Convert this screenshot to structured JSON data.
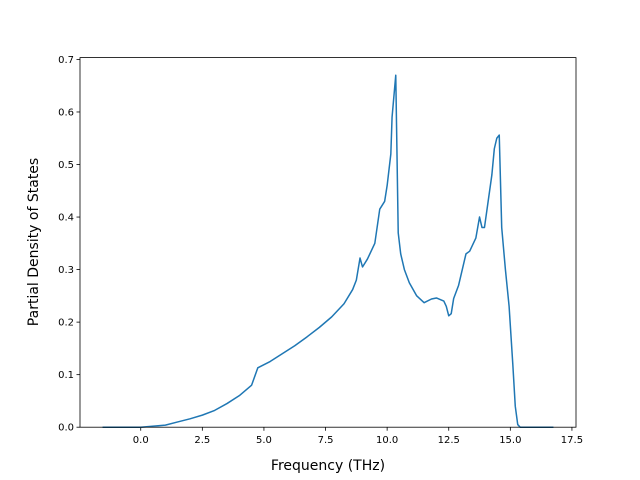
{
  "chart_data": {
    "type": "line",
    "x_label": "Frequency (THz)",
    "y_label": "Partial Density of States",
    "color": "#1f77b4",
    "x": [
      -1.55,
      0.0,
      1.0,
      1.5,
      2.0,
      2.5,
      3.0,
      3.5,
      4.0,
      4.5,
      4.75,
      5.25,
      5.75,
      6.25,
      6.75,
      7.25,
      7.75,
      8.25,
      8.6,
      8.75,
      8.9,
      9.0,
      9.2,
      9.5,
      9.7,
      9.9,
      10.0,
      10.15,
      10.2,
      10.35,
      10.45,
      10.55,
      10.7,
      10.9,
      11.2,
      11.5,
      11.8,
      12.0,
      12.3,
      12.4,
      12.5,
      12.6,
      12.7,
      12.9,
      13.1,
      13.2,
      13.35,
      13.6,
      13.75,
      13.85,
      13.95,
      14.1,
      14.25,
      14.35,
      14.45,
      14.55,
      14.65,
      14.8,
      14.95,
      15.1,
      15.2,
      15.3,
      15.4,
      16.75
    ],
    "values": [
      0,
      0,
      0.004,
      0.01,
      0.016,
      0.023,
      0.032,
      0.045,
      0.06,
      0.08,
      0.113,
      0.125,
      0.14,
      0.155,
      0.172,
      0.19,
      0.21,
      0.235,
      0.262,
      0.28,
      0.322,
      0.305,
      0.32,
      0.35,
      0.415,
      0.43,
      0.46,
      0.52,
      0.59,
      0.67,
      0.37,
      0.33,
      0.3,
      0.275,
      0.25,
      0.237,
      0.244,
      0.246,
      0.24,
      0.23,
      0.212,
      0.216,
      0.245,
      0.27,
      0.31,
      0.33,
      0.335,
      0.36,
      0.4,
      0.38,
      0.38,
      0.43,
      0.48,
      0.53,
      0.55,
      0.556,
      0.38,
      0.3,
      0.23,
      0.12,
      0.04,
      0.005,
      0,
      0
    ],
    "xlim": [
      -2.465,
      17.665
    ],
    "ylim": [
      0,
      0.7035
    ],
    "xticks": [
      {
        "value": 0,
        "label": "0.0"
      },
      2.5,
      {
        "value": 5,
        "label": "5.0"
      },
      7.5,
      {
        "value": 10,
        "label": "10.0"
      },
      12.5,
      {
        "value": 15,
        "label": "15.0"
      },
      17.5
    ],
    "yticks": [
      {
        "value": 0,
        "label": "0.0"
      },
      0.1,
      0.2,
      0.3,
      0.4,
      0.5,
      0.6,
      0.7
    ]
  }
}
